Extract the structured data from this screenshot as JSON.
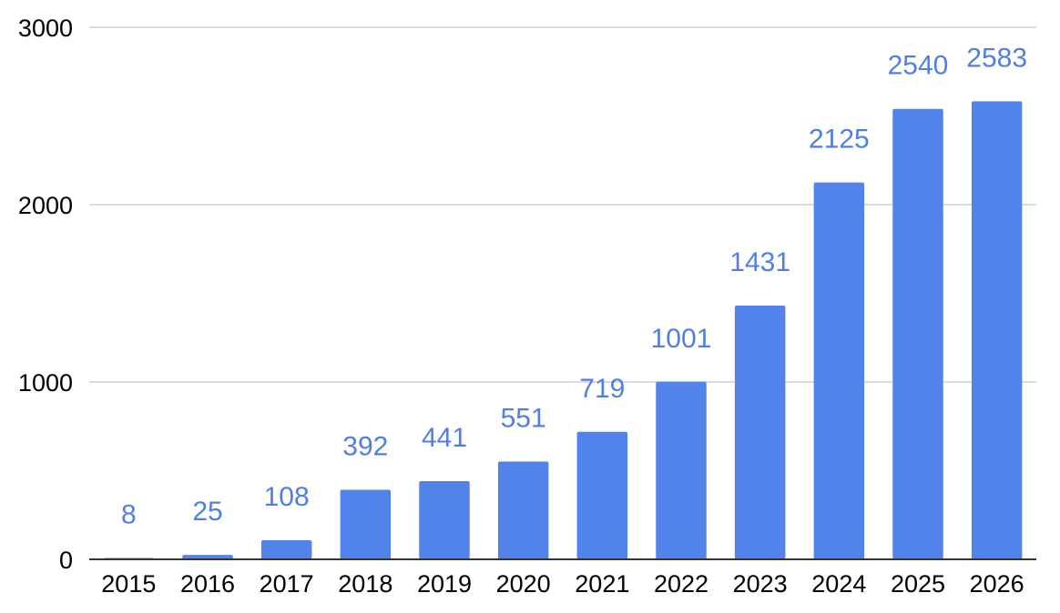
{
  "chart_data": {
    "type": "bar",
    "title": "",
    "xlabel": "",
    "ylabel": "",
    "categories": [
      "2015",
      "2016",
      "2017",
      "2018",
      "2019",
      "2020",
      "2021",
      "2022",
      "2023",
      "2024",
      "2025",
      "2026"
    ],
    "values": [
      8,
      25,
      108,
      392,
      441,
      551,
      719,
      1001,
      1431,
      2125,
      2540,
      2583
    ],
    "ylim": [
      0,
      3000
    ],
    "yticks": [
      0,
      1000,
      2000,
      3000
    ],
    "grid": true,
    "legend": "none",
    "bar_color": "#5283eb",
    "label_color": "#4f7fe6"
  }
}
